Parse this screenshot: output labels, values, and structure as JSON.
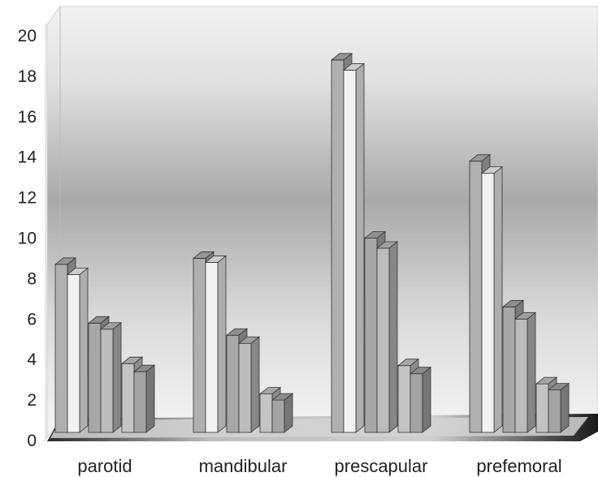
{
  "chart_data": {
    "type": "bar",
    "style": "3d-clustered",
    "categories": [
      "parotid",
      "mandibular",
      "prescapular",
      "prefemoral"
    ],
    "series": [
      {
        "values": [
          8.7,
          9.0,
          18.8,
          13.8
        ],
        "color": "#b0b0b0"
      },
      {
        "values": [
          8.2,
          8.8,
          18.3,
          13.2
        ],
        "color": "#f2f2f2"
      },
      {
        "values": [
          5.8,
          5.2,
          10.0,
          6.6
        ],
        "color": "#a8a8a8"
      },
      {
        "values": [
          5.5,
          4.8,
          9.5,
          6.0
        ],
        "color": "#bcbcbc"
      },
      {
        "values": [
          3.8,
          2.3,
          3.7,
          2.8
        ],
        "color": "#c4c4c4"
      },
      {
        "values": [
          3.4,
          2.0,
          3.3,
          2.5
        ],
        "color": "#a4a4a4"
      }
    ],
    "y_ticks": [
      "0",
      "2",
      "4",
      "6",
      "8",
      "10",
      "12",
      "14",
      "16",
      "18",
      "20"
    ],
    "ylim": [
      0,
      20
    ],
    "grid": false,
    "legend": "none"
  }
}
